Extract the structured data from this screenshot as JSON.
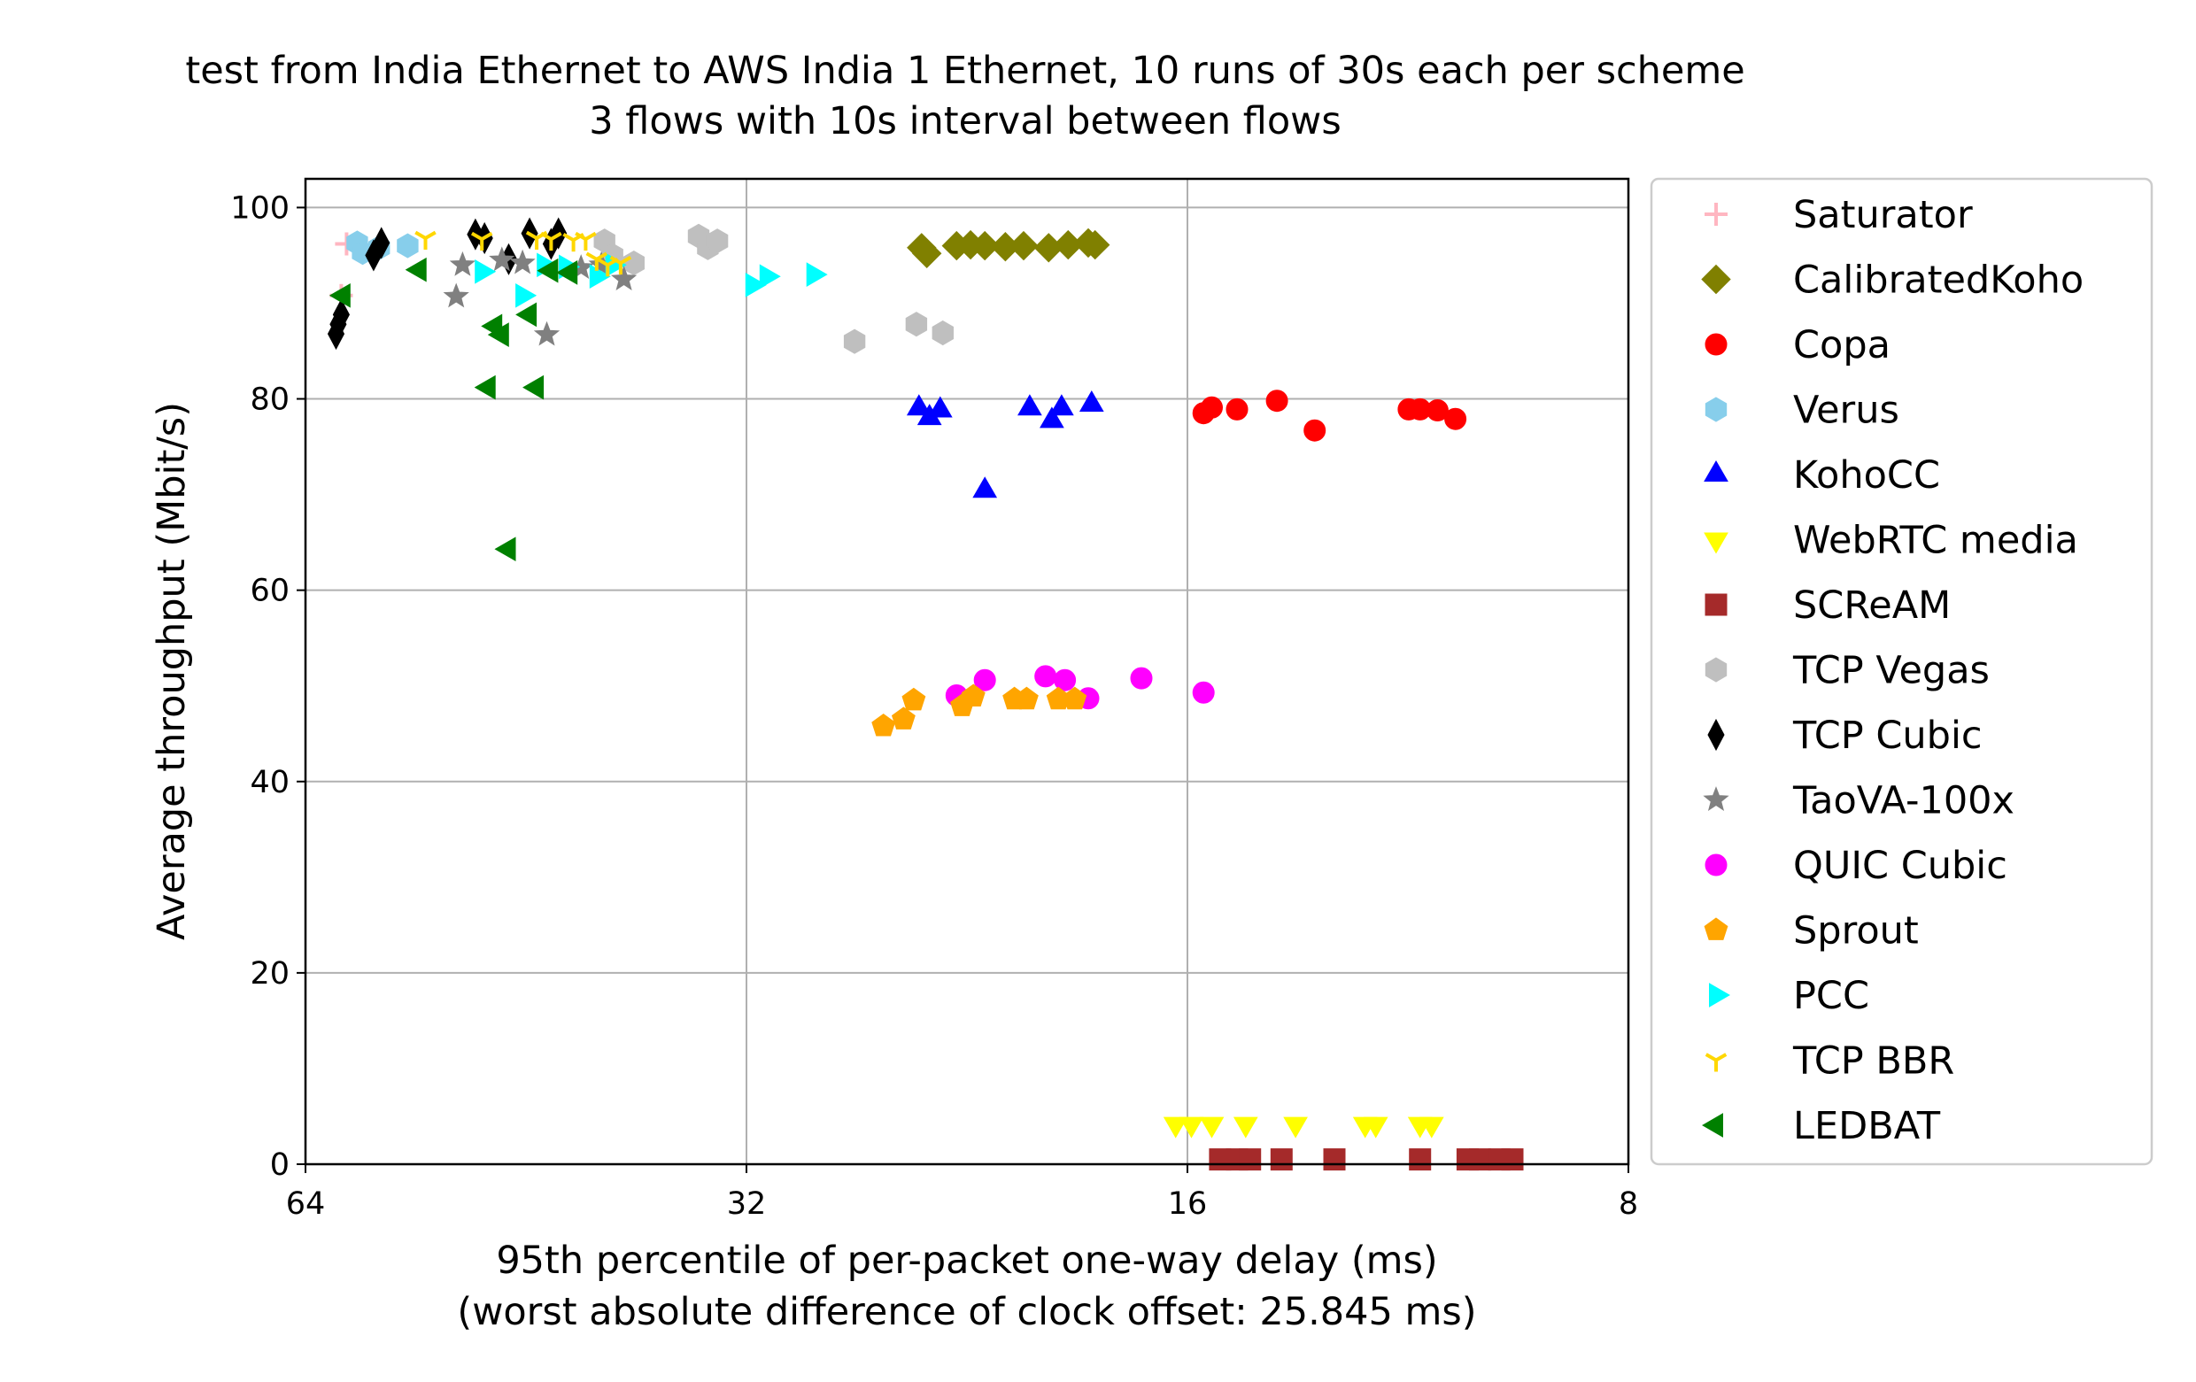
{
  "chart_data": {
    "type": "scatter",
    "title": "test from India Ethernet to AWS India 1 Ethernet, 10 runs of 30s each per scheme",
    "subtitle": "3 flows with 10s interval between flows",
    "xlabel": "95th percentile of per-packet one-way delay (ms)",
    "xlabel2": "(worst absolute difference of clock offset: 25.845 ms)",
    "ylabel": "Average throughput (Mbit/s)",
    "x_scale": "log2",
    "x_reversed": true,
    "xlim": [
      64,
      8
    ],
    "ylim": [
      0,
      103
    ],
    "xticks": [
      64,
      32,
      16,
      8
    ],
    "yticks": [
      0,
      20,
      40,
      60,
      80,
      100
    ],
    "grid": true,
    "legend_position": "outside-right",
    "series": [
      {
        "name": "Saturator",
        "marker": "plus",
        "color": "#ffb6c1",
        "points": [
          [
            60.0,
            96.2
          ],
          [
            60.5,
            90.8
          ]
        ]
      },
      {
        "name": "CalibratedKoho",
        "marker": "diamond",
        "color": "#808000",
        "points": [
          [
            24.3,
            95.8
          ],
          [
            24.1,
            95.2
          ],
          [
            23.0,
            96.0
          ],
          [
            22.5,
            96.1
          ],
          [
            22.0,
            96.0
          ],
          [
            21.3,
            95.9
          ],
          [
            20.7,
            96.0
          ],
          [
            19.9,
            95.8
          ],
          [
            19.3,
            96.1
          ],
          [
            18.7,
            96.3
          ],
          [
            18.5,
            96.1
          ]
        ]
      },
      {
        "name": "Copa",
        "marker": "circle",
        "color": "#ff0000",
        "points": [
          [
            15.6,
            78.5
          ],
          [
            15.4,
            79.1
          ],
          [
            14.8,
            78.9
          ],
          [
            13.9,
            79.8
          ],
          [
            13.1,
            76.7
          ],
          [
            11.3,
            78.9
          ],
          [
            11.1,
            78.9
          ],
          [
            10.8,
            78.8
          ],
          [
            10.5,
            77.9
          ]
        ]
      },
      {
        "name": "Verus",
        "marker": "hexagon",
        "color": "#87ceeb",
        "points": [
          [
            59.0,
            96.3
          ],
          [
            58.5,
            95.3
          ],
          [
            57.0,
            95.8
          ],
          [
            54.5,
            96.0
          ]
        ]
      },
      {
        "name": "KohoCC",
        "marker": "triangle-up",
        "color": "#0000ff",
        "points": [
          [
            24.4,
            79.0
          ],
          [
            24.0,
            78.0
          ],
          [
            23.6,
            78.8
          ],
          [
            22.0,
            70.4
          ],
          [
            20.5,
            79.0
          ],
          [
            19.8,
            77.7
          ],
          [
            19.5,
            79.0
          ],
          [
            18.6,
            79.4
          ]
        ]
      },
      {
        "name": "WebRTC media",
        "marker": "triangle-down",
        "color": "#ffff00",
        "points": [
          [
            16.3,
            4.2
          ],
          [
            15.9,
            4.2
          ],
          [
            15.4,
            4.2
          ],
          [
            14.6,
            4.2
          ],
          [
            13.5,
            4.2
          ],
          [
            12.1,
            4.2
          ],
          [
            11.9,
            4.2
          ],
          [
            11.1,
            4.2
          ],
          [
            10.9,
            4.2
          ]
        ]
      },
      {
        "name": "SCReAM",
        "marker": "square",
        "color": "#a52a2a",
        "points": [
          [
            15.2,
            0.5
          ],
          [
            14.8,
            0.5
          ],
          [
            14.5,
            0.5
          ],
          [
            13.8,
            0.5
          ],
          [
            12.7,
            0.5
          ],
          [
            11.1,
            0.5
          ],
          [
            10.3,
            0.5
          ],
          [
            10.1,
            0.5
          ],
          [
            9.8,
            0.5
          ],
          [
            9.6,
            0.5
          ]
        ]
      },
      {
        "name": "TCP Vegas",
        "marker": "hexagon",
        "color": "#bfbfbf",
        "points": [
          [
            40.0,
            96.5
          ],
          [
            39.5,
            95.0
          ],
          [
            38.2,
            94.2
          ],
          [
            34.5,
            97.0
          ],
          [
            34.0,
            95.8
          ],
          [
            33.5,
            96.5
          ],
          [
            27.0,
            86.0
          ],
          [
            24.5,
            87.8
          ],
          [
            23.5,
            86.9
          ]
        ]
      },
      {
        "name": "TCP Cubic",
        "marker": "thin-diamond",
        "color": "#000000",
        "points": [
          [
            61.0,
            86.8
          ],
          [
            60.8,
            87.8
          ],
          [
            60.5,
            88.8
          ],
          [
            57.5,
            95.0
          ],
          [
            56.8,
            96.3
          ],
          [
            49.0,
            97.2
          ],
          [
            48.3,
            96.8
          ],
          [
            46.5,
            94.6
          ],
          [
            45.0,
            97.3
          ],
          [
            43.5,
            96.2
          ],
          [
            43.0,
            97.3
          ]
        ]
      },
      {
        "name": "TaoVA-100x",
        "marker": "star",
        "color": "#808080",
        "points": [
          [
            50.5,
            90.7
          ],
          [
            50.0,
            94.0
          ],
          [
            47.0,
            94.5
          ],
          [
            45.5,
            94.2
          ],
          [
            43.8,
            86.7
          ],
          [
            41.5,
            93.7
          ],
          [
            40.2,
            94.0
          ],
          [
            38.8,
            92.5
          ]
        ]
      },
      {
        "name": "QUIC Cubic",
        "marker": "circle",
        "color": "#ff00ff",
        "points": [
          [
            23.0,
            49.0
          ],
          [
            22.0,
            50.6
          ],
          [
            20.0,
            51.0
          ],
          [
            19.4,
            50.6
          ],
          [
            18.7,
            48.7
          ],
          [
            17.2,
            50.8
          ],
          [
            15.6,
            49.3
          ]
        ]
      },
      {
        "name": "Sprout",
        "marker": "pentagon",
        "color": "#ffa500",
        "points": [
          [
            25.8,
            45.8
          ],
          [
            25.0,
            46.5
          ],
          [
            24.6,
            48.5
          ],
          [
            22.8,
            47.9
          ],
          [
            22.4,
            48.9
          ],
          [
            21.0,
            48.6
          ],
          [
            20.6,
            48.6
          ],
          [
            19.6,
            48.6
          ],
          [
            19.1,
            48.6
          ]
        ]
      },
      {
        "name": "PCC",
        "marker": "triangle-right",
        "color": "#00ffff",
        "points": [
          [
            48.5,
            93.3
          ],
          [
            45.5,
            90.8
          ],
          [
            44.0,
            94.0
          ],
          [
            42.5,
            93.8
          ],
          [
            40.5,
            92.8
          ],
          [
            39.5,
            94.0
          ],
          [
            31.7,
            91.9
          ],
          [
            31.0,
            92.8
          ],
          [
            28.8,
            93.0
          ]
        ]
      },
      {
        "name": "TCP BBR",
        "marker": "tri-down",
        "color": "#ffd700",
        "points": [
          [
            53.0,
            96.8
          ],
          [
            48.5,
            96.7
          ],
          [
            44.5,
            96.8
          ],
          [
            43.5,
            96.7
          ],
          [
            42.0,
            96.6
          ],
          [
            41.2,
            96.7
          ],
          [
            40.5,
            94.6
          ],
          [
            39.8,
            94.0
          ],
          [
            39.0,
            94.2
          ]
        ]
      },
      {
        "name": "LEDBAT",
        "marker": "triangle-left",
        "color": "#008000",
        "points": [
          [
            60.3,
            90.8
          ],
          [
            53.5,
            93.5
          ],
          [
            47.5,
            87.6
          ],
          [
            47.0,
            86.7
          ],
          [
            45.0,
            88.8
          ],
          [
            48.0,
            81.2
          ],
          [
            44.5,
            81.2
          ],
          [
            46.5,
            64.3
          ],
          [
            43.5,
            93.4
          ],
          [
            42.2,
            93.2
          ]
        ]
      }
    ]
  }
}
